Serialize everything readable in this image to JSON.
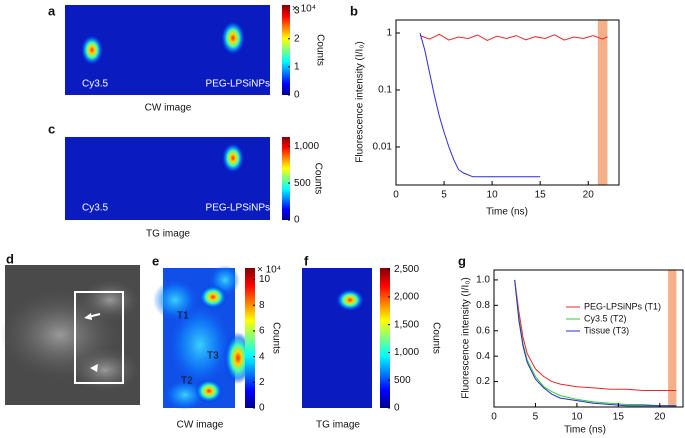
{
  "chart_data": [
    {
      "type": "heatmap",
      "label": "a",
      "caption": "CW image",
      "annotations": [
        "Cy3.5",
        "PEG-LPSiNPs"
      ],
      "colorbar_title": "Counts",
      "colorbar_multiplier": "× 10⁴",
      "clim": [
        0,
        3.2
      ],
      "cticks": [
        0,
        1,
        2,
        3
      ]
    },
    {
      "type": "line",
      "label": "b",
      "xlabel": "Time (ns)",
      "ylabel": "Fluorescence intensity (I/I₀)",
      "log_y": true,
      "xlim": [
        0,
        23.2
      ],
      "ylim": [
        0.00215,
        1.69
      ],
      "xticks": [
        0,
        5,
        10,
        15,
        20
      ],
      "yticks": [
        1,
        0.1,
        0.01
      ],
      "highlight": [
        21,
        22
      ],
      "highlight_color": "#f5b08a",
      "series": [
        {
          "color": "#e8282a",
          "x": [
            2.5,
            3.5,
            4.5,
            5.5,
            6.5,
            7.5,
            8.5,
            9.5,
            10.5,
            11.5,
            12.5,
            13.5,
            14.5,
            15.5,
            16.5,
            17.5,
            18.5,
            19.5,
            20.5,
            21.5,
            22.0
          ],
          "values": [
            0.9,
            0.78,
            0.95,
            0.75,
            0.85,
            0.8,
            0.92,
            0.74,
            0.88,
            0.8,
            0.9,
            0.76,
            0.86,
            0.8,
            0.93,
            0.75,
            0.85,
            0.8,
            0.9,
            0.78,
            0.86
          ]
        },
        {
          "color": "#2b2bd6",
          "x": [
            2.5,
            3,
            3.5,
            4,
            4.5,
            5,
            5.5,
            6,
            6.5,
            7,
            8,
            9,
            10,
            12,
            14,
            15
          ],
          "values": [
            1,
            0.5,
            0.2,
            0.08,
            0.035,
            0.018,
            0.01,
            0.006,
            0.004,
            0.0035,
            0.003,
            0.003,
            0.003,
            0.003,
            0.003,
            0.003
          ]
        }
      ]
    },
    {
      "type": "heatmap",
      "label": "c",
      "caption": "TG image",
      "annotations": [
        "Cy3.5",
        "PEG-LPSiNPs"
      ],
      "colorbar_title": "Counts",
      "clim": [
        0,
        1125
      ],
      "cticks": [
        0,
        500,
        {
          "value": 1000,
          "label": "1,000"
        }
      ]
    },
    {
      "type": "photo",
      "label": "d"
    },
    {
      "type": "heatmap",
      "label": "e",
      "caption": "CW image",
      "annotations": [
        "T1",
        "T3",
        "T2"
      ],
      "colorbar_title": "Counts",
      "colorbar_multiplier": "× 10⁴",
      "clim": [
        0,
        10.9
      ],
      "cticks": [
        0,
        2,
        4,
        6,
        8,
        10
      ]
    },
    {
      "type": "heatmap",
      "label": "f",
      "caption": "TG image",
      "annotations": [],
      "colorbar_title": "Counts",
      "clim": [
        0,
        2520
      ],
      "cticks": [
        0,
        500,
        {
          "value": 1000,
          "label": "1,000"
        },
        {
          "value": 1500,
          "label": "1,500"
        },
        {
          "value": 2000,
          "label": "2,000"
        },
        {
          "value": 2500,
          "label": "2,500"
        }
      ]
    },
    {
      "type": "line",
      "label": "g",
      "xlabel": "Time (ns)",
      "ylabel": "Fluorescence intensity (I/I₀)",
      "log_y": false,
      "xlim": [
        0,
        22.8
      ],
      "ylim": [
        0,
        1.078
      ],
      "xticks": [
        0,
        5,
        10,
        15,
        20
      ],
      "yticks": [
        0.2,
        0.4,
        0.6,
        0.8,
        {
          "value": 1,
          "label": "1.0"
        }
      ],
      "highlight": [
        21,
        22
      ],
      "highlight_color": "#f5b08a",
      "series": [
        {
          "name": "PEG-LPSiNPs (T1)",
          "color": "#e8282a",
          "x": [
            2.5,
            3,
            3.5,
            4,
            5,
            6,
            7,
            8,
            10,
            12,
            14,
            16,
            18,
            20,
            22
          ],
          "values": [
            1,
            0.75,
            0.55,
            0.42,
            0.3,
            0.24,
            0.2,
            0.18,
            0.16,
            0.15,
            0.14,
            0.14,
            0.13,
            0.13,
            0.13
          ]
        },
        {
          "name": "Cy3.5 (T2)",
          "color": "#33cc33",
          "x": [
            2.5,
            3,
            3.5,
            4,
            5,
            6,
            7,
            8,
            10,
            12,
            14,
            16,
            18,
            20,
            22
          ],
          "values": [
            1,
            0.7,
            0.5,
            0.37,
            0.24,
            0.16,
            0.12,
            0.09,
            0.06,
            0.04,
            0.03,
            0.02,
            0.02,
            0.01,
            0.01
          ]
        },
        {
          "name": "Tissue (T3)",
          "color": "#2b2bd6",
          "x": [
            2.5,
            3,
            3.5,
            4,
            5,
            6,
            7,
            8,
            10,
            12,
            14,
            16,
            18,
            20,
            22
          ],
          "values": [
            1,
            0.68,
            0.48,
            0.35,
            0.22,
            0.15,
            0.1,
            0.07,
            0.05,
            0.03,
            0.02,
            0.01,
            0.01,
            0.01,
            0.01
          ]
        }
      ]
    }
  ]
}
